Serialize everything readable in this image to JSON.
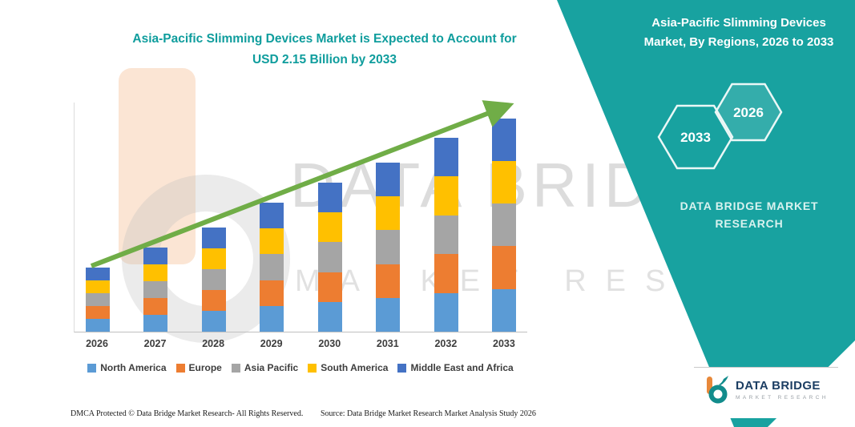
{
  "page": {
    "title_line1": "Asia-Pacific Slimming Devices Market is Expected to Account for",
    "title_line2": "USD 2.15 Billion by 2033"
  },
  "banner": {
    "heading_line1": "Asia-Pacific Slimming Devices",
    "heading_line2": "Market, By Regions, 2026 to 2033",
    "hexagon_left_year": "2033",
    "hexagon_right_year": "2026",
    "brand_line1": "DATA BRIDGE MARKET",
    "brand_line2": "RESEARCH"
  },
  "watermark": {
    "line1": "DATA BRIDGE",
    "line2": "MARKET RESEARCH"
  },
  "chart_data": {
    "type": "bar",
    "stacked": true,
    "title": "Asia-Pacific Slimming Devices Market is Expected to Account for USD 2.15 Billion by 2033",
    "categories": [
      "2026",
      "2027",
      "2028",
      "2029",
      "2030",
      "2031",
      "2032",
      "2033"
    ],
    "series": [
      {
        "name": "North America",
        "color": "#5B9BD5",
        "values": [
          0.13,
          0.17,
          0.21,
          0.26,
          0.3,
          0.34,
          0.39,
          0.43
        ]
      },
      {
        "name": "Europe",
        "color": "#ED7D31",
        "values": [
          0.13,
          0.17,
          0.21,
          0.26,
          0.3,
          0.34,
          0.39,
          0.43
        ]
      },
      {
        "name": "Asia Pacific",
        "color": "#A5A5A5",
        "values": [
          0.13,
          0.17,
          0.21,
          0.26,
          0.3,
          0.34,
          0.39,
          0.43
        ]
      },
      {
        "name": "South America",
        "color": "#FFC000",
        "values": [
          0.13,
          0.17,
          0.21,
          0.26,
          0.3,
          0.34,
          0.39,
          0.43
        ]
      },
      {
        "name": "Middle East and Africa",
        "color": "#4472C4",
        "values": [
          0.13,
          0.17,
          0.21,
          0.26,
          0.3,
          0.34,
          0.39,
          0.43
        ]
      }
    ],
    "totals_usd_billion": [
      0.65,
      0.85,
      1.05,
      1.3,
      1.5,
      1.7,
      1.95,
      2.15
    ],
    "ylim": [
      0,
      2.4
    ],
    "grid": false,
    "legend_position": "bottom",
    "annotations": [
      "green upward trend arrow across bar tops"
    ]
  },
  "footer": {
    "dmca": "DMCA Protected © Data Bridge Market Research-  All Rights Reserved.",
    "source": "Source: Data Bridge Market Research  Market Analysis Study 2026"
  },
  "logo": {
    "name": "DATA BRIDGE",
    "subtitle": "MARKET RESEARCH"
  },
  "colors": {
    "teal_band": "#18A2A0",
    "title_text": "#0F9D9D",
    "arrow_green": "#70AD47"
  }
}
